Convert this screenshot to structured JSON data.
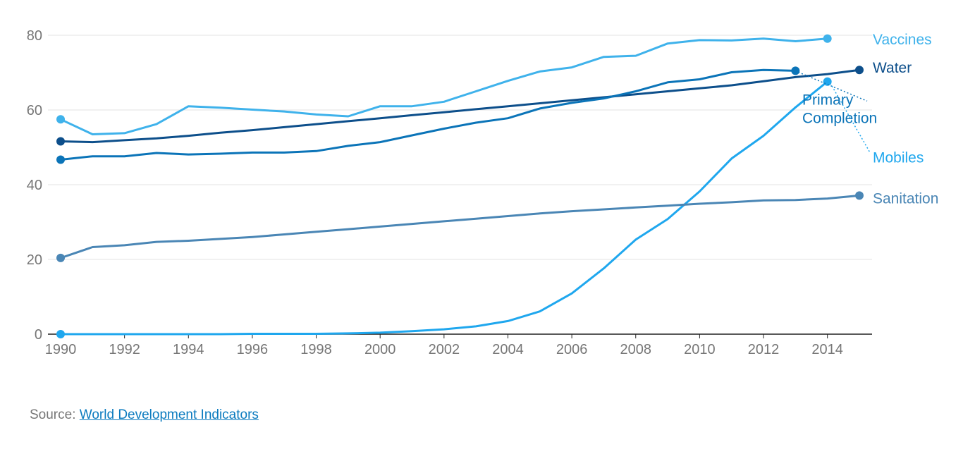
{
  "chart_data": {
    "type": "line",
    "title": "",
    "xlabel": "",
    "ylabel": "",
    "xlim": [
      1990,
      2015
    ],
    "ylim": [
      0,
      80
    ],
    "x_ticks": [
      "1990",
      "1992",
      "1994",
      "1996",
      "1998",
      "2000",
      "2002",
      "2004",
      "2006",
      "2008",
      "2010",
      "2012",
      "2014"
    ],
    "y_ticks": [
      "0",
      "20",
      "40",
      "60",
      "80"
    ],
    "grid": "horizontal",
    "legend": "direct labels at right end of lines",
    "series": [
      {
        "name": "Vaccines",
        "color": "#3fb2eb",
        "x": [
          1990,
          1991,
          1992,
          1993,
          1994,
          1995,
          1996,
          1997,
          1998,
          1999,
          2000,
          2001,
          2002,
          2003,
          2004,
          2005,
          2006,
          2007,
          2008,
          2009,
          2010,
          2011,
          2012,
          2013,
          2014
        ],
        "values": [
          57.5,
          53.5,
          53.8,
          56.2,
          61.0,
          60.6,
          60.1,
          59.6,
          58.8,
          58.3,
          61.0,
          61.0,
          62.2,
          65.0,
          67.8,
          70.3,
          71.4,
          74.2,
          74.5,
          77.8,
          78.7,
          78.6,
          79.1,
          78.4,
          79.1
        ],
        "label_y": 79.1
      },
      {
        "name": "Water",
        "color": "#0d4f8b",
        "x": [
          1990,
          1991,
          1992,
          1993,
          1994,
          1995,
          1996,
          1997,
          1998,
          1999,
          2000,
          2001,
          2002,
          2003,
          2004,
          2005,
          2006,
          2007,
          2008,
          2009,
          2010,
          2011,
          2012,
          2013,
          2014,
          2015
        ],
        "values": [
          51.6,
          51.4,
          51.9,
          52.4,
          53.1,
          53.9,
          54.6,
          55.4,
          56.2,
          57.0,
          57.8,
          58.6,
          59.4,
          60.2,
          61.0,
          61.8,
          62.6,
          63.4,
          64.2,
          65.0,
          65.8,
          66.6,
          67.7,
          68.8,
          69.6,
          70.7
        ],
        "label_y": 71.5
      },
      {
        "name": "Primary Completion",
        "label_lines": [
          "Primary",
          "Completion"
        ],
        "color": "#0b74b8",
        "x": [
          1990,
          1991,
          1992,
          1993,
          1994,
          1995,
          1996,
          1997,
          1998,
          1999,
          2000,
          2001,
          2002,
          2003,
          2004,
          2005,
          2006,
          2007,
          2008,
          2009,
          2010,
          2011,
          2012,
          2013
        ],
        "values": [
          46.7,
          47.6,
          47.6,
          48.5,
          48.1,
          48.3,
          48.6,
          48.6,
          49.0,
          50.4,
          51.4,
          53.2,
          55.0,
          56.6,
          57.8,
          60.4,
          61.9,
          63.1,
          65.0,
          67.4,
          68.2,
          70.1,
          70.7,
          70.5
        ],
        "label_y": 60.5
      },
      {
        "name": "Mobiles",
        "color": "#1fa7ee",
        "x": [
          1990,
          1991,
          1992,
          1993,
          1994,
          1995,
          1996,
          1997,
          1998,
          1999,
          2000,
          2001,
          2002,
          2003,
          2004,
          2005,
          2006,
          2007,
          2008,
          2009,
          2010,
          2011,
          2012,
          2013,
          2014
        ],
        "values": [
          0.0,
          0.0,
          0.0,
          0.0,
          0.0,
          0.0,
          0.1,
          0.1,
          0.1,
          0.2,
          0.4,
          0.8,
          1.3,
          2.1,
          3.5,
          6.1,
          10.9,
          17.6,
          25.3,
          30.8,
          38.2,
          47.0,
          53.1,
          60.7,
          67.6
        ],
        "label_y": 47.5
      },
      {
        "name": "Sanitation",
        "color": "#4a86b5",
        "x": [
          1990,
          1991,
          1992,
          1993,
          1994,
          1995,
          1996,
          1997,
          1998,
          1999,
          2000,
          2001,
          2002,
          2003,
          2004,
          2005,
          2006,
          2007,
          2008,
          2009,
          2010,
          2011,
          2012,
          2013,
          2014,
          2015
        ],
        "values": [
          20.4,
          23.3,
          23.8,
          24.7,
          25.0,
          25.5,
          26.0,
          26.7,
          27.4,
          28.1,
          28.8,
          29.5,
          30.2,
          30.9,
          31.6,
          32.3,
          32.9,
          33.4,
          33.9,
          34.4,
          34.9,
          35.3,
          35.8,
          35.9,
          36.3,
          37.1
        ],
        "label_y": 36.5
      }
    ]
  },
  "source": {
    "prefix": "Source: ",
    "link_text": "World Development Indicators"
  }
}
